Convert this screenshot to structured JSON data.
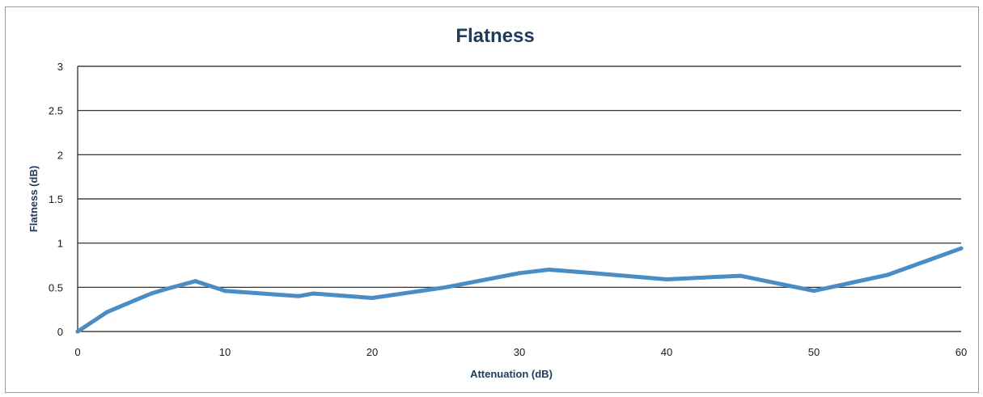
{
  "chart_data": {
    "type": "line",
    "title": "Flatness",
    "xlabel": "Attenuation (dB)",
    "ylabel": "Flatness (dB)",
    "xlim": [
      0,
      60
    ],
    "ylim": [
      0,
      3
    ],
    "x_ticks": [
      "0",
      "10",
      "20",
      "30",
      "40",
      "50",
      "60"
    ],
    "y_ticks": [
      "0",
      "0.5",
      "1",
      "1.5",
      "2",
      "2.5",
      "3"
    ],
    "grid": "horizontal",
    "series": [
      {
        "color": "#4a8cc4",
        "x": [
          0,
          2,
          4,
          5,
          6,
          8,
          10,
          15,
          16,
          20,
          25,
          30,
          32,
          35,
          40,
          45,
          50,
          55,
          60
        ],
        "y": [
          0.0,
          0.22,
          0.36,
          0.43,
          0.48,
          0.57,
          0.46,
          0.4,
          0.43,
          0.38,
          0.5,
          0.66,
          0.7,
          0.66,
          0.59,
          0.63,
          0.46,
          0.64,
          0.94
        ]
      }
    ]
  }
}
